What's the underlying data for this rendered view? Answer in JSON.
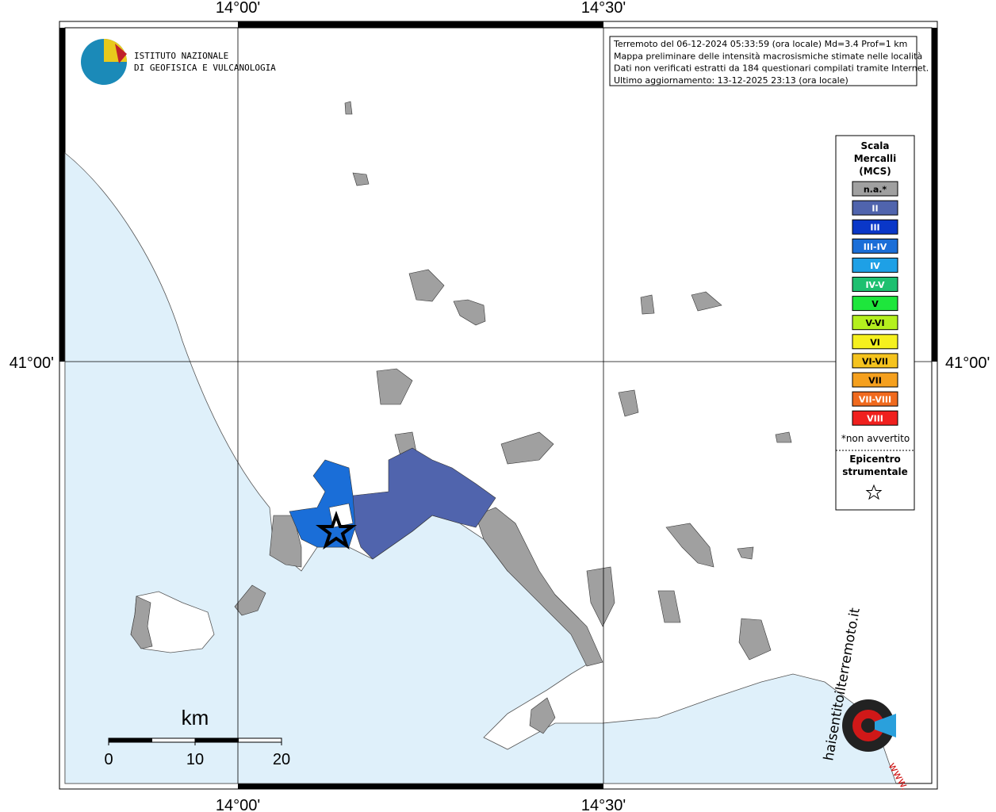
{
  "axes": {
    "top": [
      "14°00'",
      "14°30'"
    ],
    "bottom": [
      "14°00'",
      "14°30'"
    ],
    "left": [
      "41°00'"
    ],
    "right": [
      "41°00'"
    ]
  },
  "logo": {
    "line1": "ISTITUTO NAZIONALE",
    "line2": "DI GEOFISICA E VULCANOLOGIA"
  },
  "info": [
    "Terremoto del 06-12-2024 05:33:59 (ora locale) Md=3.4 Prof=1 km",
    "Mappa preliminare delle intensità macrosismiche stimate nelle località",
    "Dati non verificati estratti da 184 questionari compilati tramite Internet.",
    "Ultimo aggiornamento: 13-12-2025 23:13 (ora locale)"
  ],
  "legend": {
    "title": [
      "Scala",
      "Mercalli",
      "(MCS)"
    ],
    "items": [
      {
        "label": "n.a.*",
        "color": "#a0a0a0"
      },
      {
        "label": "II",
        "color": "#5064ad"
      },
      {
        "label": "III",
        "color": "#0a37c8"
      },
      {
        "label": "III-IV",
        "color": "#1a6ed8"
      },
      {
        "label": "IV",
        "color": "#1ea0e6"
      },
      {
        "label": "IV-V",
        "color": "#1ec070"
      },
      {
        "label": "V",
        "color": "#1ee63c"
      },
      {
        "label": "V-VI",
        "color": "#b4f01e"
      },
      {
        "label": "VI",
        "color": "#f5f01e"
      },
      {
        "label": "VI-VII",
        "color": "#f5c31e"
      },
      {
        "label": "VII",
        "color": "#f5a01e"
      },
      {
        "label": "VII-VIII",
        "color": "#f06a1e"
      },
      {
        "label": "VIII",
        "color": "#f0201e"
      }
    ],
    "note": "*non avvertito",
    "epicenter": [
      "Epicentro",
      "strumentale"
    ]
  },
  "scale_bar": {
    "unit": "km",
    "ticks": [
      0,
      10,
      20
    ]
  },
  "watermark": {
    "text": "haisentitoilterremoto.it",
    "prefix": "www."
  }
}
